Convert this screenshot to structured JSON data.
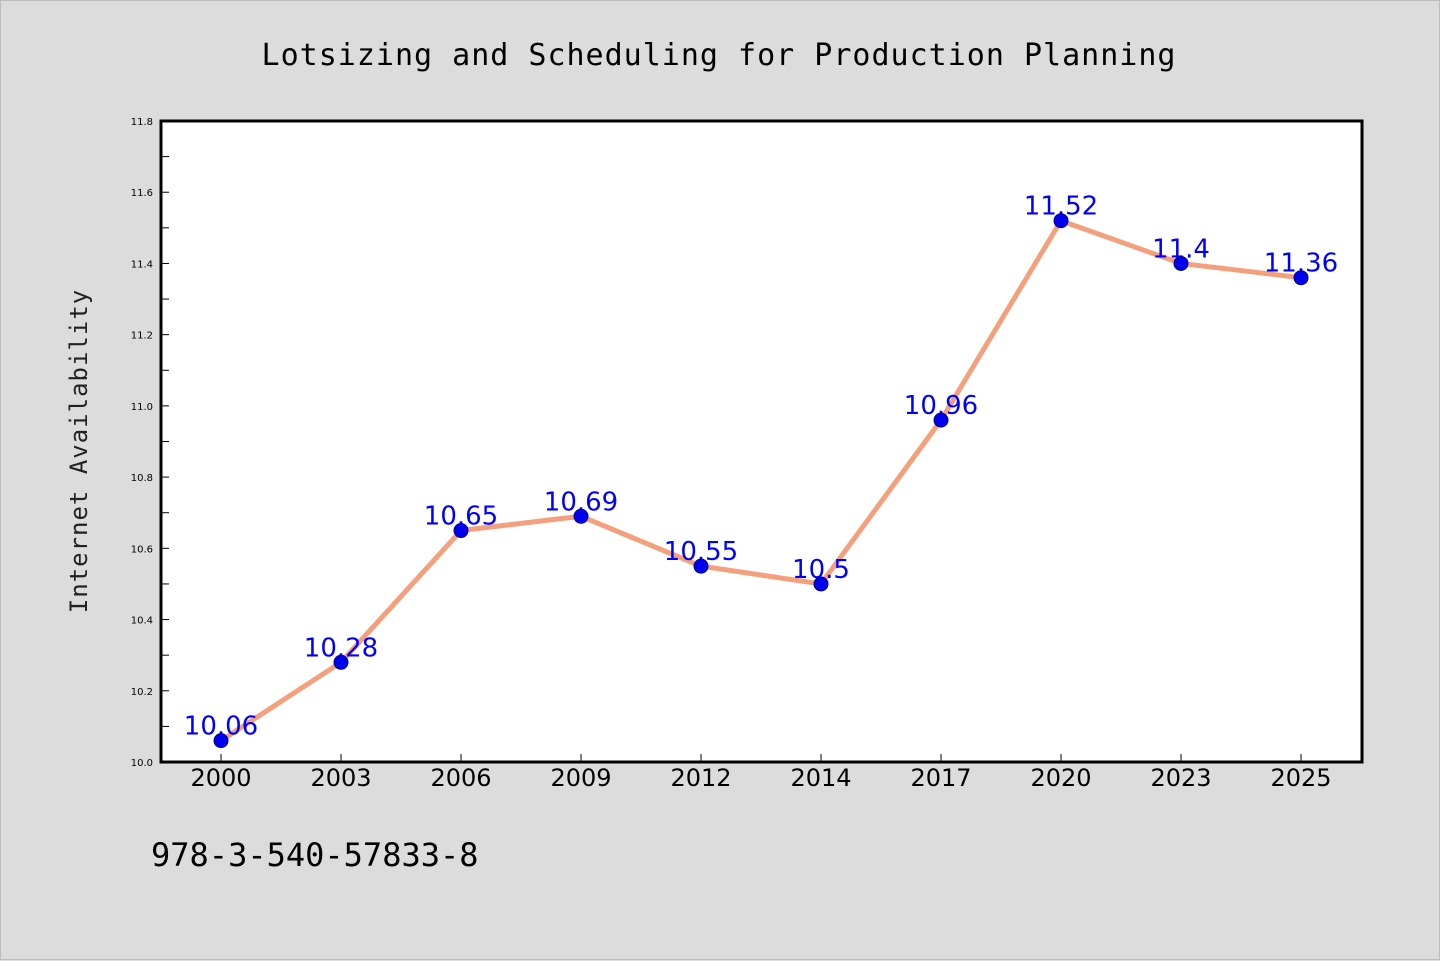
{
  "chart_data": {
    "type": "line",
    "title": "Lotsizing and Scheduling for Production Planning",
    "xlabel": "",
    "ylabel": "Internet Availability",
    "categories": [
      "2000",
      "2003",
      "2006",
      "2009",
      "2012",
      "2014",
      "2017",
      "2020",
      "2023",
      "2025"
    ],
    "series": [
      {
        "values": [
          10.06,
          10.28,
          10.65,
          10.69,
          10.55,
          10.5,
          10.96,
          11.52,
          11.4,
          11.36
        ],
        "data_labels": [
          "10.06",
          "10.28",
          "10.65",
          "10.69",
          "10.55",
          "10.5",
          "10.96",
          "11.52",
          "11.4",
          "11.36"
        ],
        "line_color": "#f4a07c",
        "marker_color": "#0000ee"
      }
    ],
    "ylim": [
      10.0,
      11.8
    ],
    "yticks": [
      "10.0",
      "10.2",
      "10.4",
      "10.6",
      "10.8",
      "11.0",
      "11.2",
      "11.4",
      "11.6",
      "11.8"
    ],
    "grid": false,
    "legend": "none"
  },
  "footer": {
    "isbn": "978-3-540-57833-8"
  },
  "colors": {
    "background": "#dcdcdc",
    "plot_area": "#ffffff",
    "label_color": "#0000ff"
  }
}
